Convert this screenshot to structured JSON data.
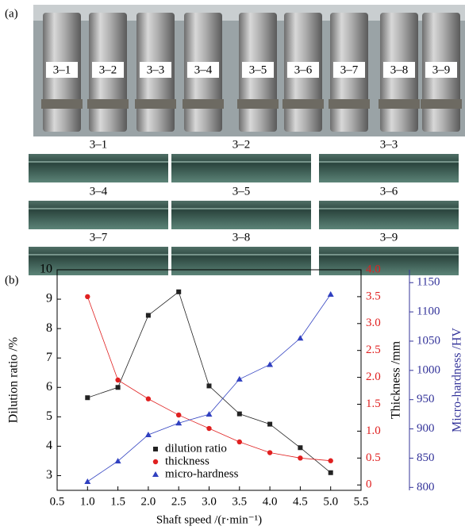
{
  "panel_a": {
    "label": "(a)",
    "samples": [
      "3–1",
      "3–2",
      "3–3",
      "3–4",
      "3–5",
      "3–6",
      "3–7",
      "3–8",
      "3–9"
    ],
    "sections": [
      "3–1",
      "3–4",
      "3–7",
      "3–2",
      "3–5",
      "3–8",
      "3–3",
      "3–6",
      "3–9"
    ]
  },
  "chart_data": {
    "type": "line",
    "panel_label": "(b)",
    "x_label": "Shaft speed /(r·min⁻¹)",
    "y_label": "Dilution ratio /%",
    "y2_label": "Thickness /mm",
    "y3_label": "Micro-hardness /HV",
    "x": [
      1.0,
      1.5,
      2.0,
      2.5,
      3.0,
      3.5,
      4.0,
      4.5,
      5.0
    ],
    "xlim": [
      0.5,
      5.5
    ],
    "xticks": [
      0.5,
      {
        "value": 1,
        "label": "1.0"
      },
      1.5,
      {
        "value": 2,
        "label": "2.0"
      },
      2.5,
      {
        "value": 3,
        "label": "3.0"
      },
      3.5,
      {
        "value": 4,
        "label": "4.0"
      },
      4.5,
      {
        "value": 5,
        "label": "5.0"
      },
      5.5
    ],
    "ylim": [
      2.5,
      10
    ],
    "yticks": [
      3,
      4,
      5,
      6,
      7,
      8,
      9,
      10
    ],
    "y2lim": [
      -0.1,
      4
    ],
    "y2ticks": [
      0,
      0.5,
      {
        "value": 1,
        "label": "1.0"
      },
      1.5,
      {
        "value": 2,
        "label": "2.0"
      },
      2.5,
      {
        "value": 3,
        "label": "3.0"
      },
      3.5,
      {
        "value": 4,
        "label": "4.0"
      }
    ],
    "y3lim": [
      795,
      1172
    ],
    "y3ticks": [
      800,
      850,
      900,
      950,
      1000,
      1050,
      1100,
      1150
    ],
    "y2_color": "#e02020",
    "y3_color": "#34349a",
    "series": [
      {
        "name": "dilution ratio",
        "color": "#222222",
        "marker": "square",
        "values": [
          5.65,
          6.0,
          8.45,
          9.25,
          6.05,
          5.1,
          4.75,
          3.95,
          3.1
        ]
      },
      {
        "name": "thickness",
        "color": "#e02020",
        "marker": "circle",
        "axis": "y2",
        "values": [
          3.5,
          1.95,
          1.6,
          1.3,
          1.05,
          0.8,
          0.6,
          0.5,
          0.45
        ]
      },
      {
        "name": "micro-hardness",
        "color": "#3040c0",
        "marker": "triangle",
        "axis": "y3",
        "values": [
          810,
          845,
          890,
          910,
          925,
          985,
          1010,
          1055,
          1130
        ]
      }
    ]
  }
}
